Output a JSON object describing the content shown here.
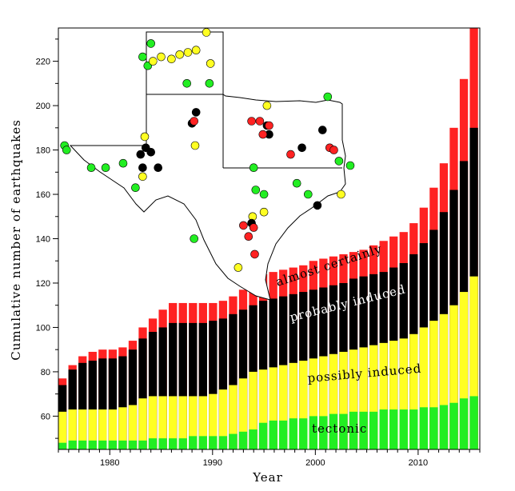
{
  "chart_data": {
    "type": "area",
    "stacked": true,
    "xlabel": "Year",
    "ylabel": "Cumulative number of earthquakes",
    "xlim": [
      1975,
      2016
    ],
    "ylim": [
      45,
      235
    ],
    "x_ticks": [
      1980,
      1990,
      2000,
      2010
    ],
    "y_ticks": [
      60,
      80,
      100,
      120,
      140,
      160,
      180,
      200,
      220
    ],
    "grid": false,
    "colors": {
      "tectonic": "#22ee22",
      "possibly_induced": "#ffff22",
      "probably_induced": "#000000",
      "almost_certainly": "#ff2222"
    },
    "x": [
      1975,
      1976,
      1977,
      1978,
      1979,
      1980,
      1981,
      1982,
      1983,
      1984,
      1985,
      1986,
      1987,
      1988,
      1989,
      1990,
      1991,
      1992,
      1993,
      1994,
      1995,
      1996,
      1997,
      1998,
      1999,
      2000,
      2001,
      2002,
      2003,
      2004,
      2005,
      2006,
      2007,
      2008,
      2009,
      2010,
      2011,
      2012,
      2013,
      2014,
      2015,
      2016
    ],
    "series": [
      {
        "name": "tectonic",
        "values": [
          48,
          49,
          49,
          49,
          49,
          49,
          49,
          49,
          49,
          50,
          50,
          50,
          50,
          51,
          51,
          51,
          51,
          52,
          53,
          54,
          57,
          58,
          58,
          59,
          59,
          60,
          60,
          61,
          61,
          62,
          62,
          62,
          63,
          63,
          63,
          63,
          64,
          64,
          65,
          66,
          68,
          69
        ]
      },
      {
        "name": "possibly induced",
        "values": [
          62,
          63,
          63,
          63,
          63,
          63,
          64,
          65,
          68,
          69,
          69,
          69,
          69,
          69,
          69,
          70,
          72,
          74,
          77,
          80,
          81,
          82,
          83,
          84,
          85,
          86,
          87,
          88,
          89,
          90,
          91,
          92,
          93,
          94,
          95,
          97,
          100,
          103,
          106,
          110,
          116,
          123
        ]
      },
      {
        "name": "probably induced",
        "values": [
          74,
          81,
          84,
          85,
          86,
          86,
          87,
          90,
          95,
          98,
          100,
          102,
          102,
          102,
          102,
          103,
          104,
          106,
          108,
          110,
          112,
          113,
          114,
          115,
          116,
          117,
          118,
          119,
          120,
          122,
          123,
          124,
          125,
          127,
          129,
          133,
          138,
          144,
          152,
          162,
          175,
          190
        ]
      },
      {
        "name": "almost certainly",
        "values": [
          77,
          83,
          87,
          89,
          90,
          90,
          91,
          94,
          100,
          104,
          108,
          111,
          111,
          111,
          111,
          111,
          112,
          114,
          117,
          120,
          124,
          125,
          126,
          127,
          128,
          130,
          131,
          132,
          133,
          134,
          135,
          137,
          139,
          141,
          143,
          147,
          154,
          163,
          174,
          190,
          212,
          235
        ]
      }
    ],
    "labels": {
      "tectonic": "tectonic",
      "possibly_induced": "possibly induced",
      "probably_induced": "probably induced",
      "almost_certainly": "almost certainly"
    },
    "map_inset": {
      "markers": [
        {
          "year_pos": 1975.6,
          "value": 182,
          "category": "tectonic"
        },
        {
          "year_pos": 1975.8,
          "value": 180,
          "category": "tectonic"
        },
        {
          "year_pos": 1978.2,
          "value": 172,
          "category": "tectonic"
        },
        {
          "year_pos": 1979.6,
          "value": 172,
          "category": "tectonic"
        },
        {
          "year_pos": 1981.3,
          "value": 174,
          "category": "tectonic"
        },
        {
          "year_pos": 1982.5,
          "value": 163,
          "category": "tectonic"
        },
        {
          "year_pos": 1983.2,
          "value": 222,
          "category": "tectonic"
        },
        {
          "year_pos": 1984.0,
          "value": 228,
          "category": "tectonic"
        },
        {
          "year_pos": 1983.7,
          "value": 218,
          "category": "tectonic"
        },
        {
          "year_pos": 1987.5,
          "value": 210,
          "category": "tectonic"
        },
        {
          "year_pos": 1989.7,
          "value": 210,
          "category": "tectonic"
        },
        {
          "year_pos": 1994.0,
          "value": 172,
          "category": "tectonic"
        },
        {
          "year_pos": 1994.2,
          "value": 162,
          "category": "tectonic"
        },
        {
          "year_pos": 1995.0,
          "value": 160,
          "category": "tectonic"
        },
        {
          "year_pos": 1998.2,
          "value": 165,
          "category": "tectonic"
        },
        {
          "year_pos": 1999.3,
          "value": 160,
          "category": "tectonic"
        },
        {
          "year_pos": 2001.2,
          "value": 204,
          "category": "tectonic"
        },
        {
          "year_pos": 2002.3,
          "value": 175,
          "category": "tectonic"
        },
        {
          "year_pos": 2003.4,
          "value": 173,
          "category": "tectonic"
        },
        {
          "year_pos": 1988.2,
          "value": 140,
          "category": "tectonic"
        },
        {
          "year_pos": 1984.2,
          "value": 220,
          "category": "possibly induced"
        },
        {
          "year_pos": 1985.0,
          "value": 222,
          "category": "possibly induced"
        },
        {
          "year_pos": 1986.0,
          "value": 221,
          "category": "possibly induced"
        },
        {
          "year_pos": 1986.8,
          "value": 223,
          "category": "possibly induced"
        },
        {
          "year_pos": 1987.6,
          "value": 224,
          "category": "possibly induced"
        },
        {
          "year_pos": 1988.4,
          "value": 225,
          "category": "possibly induced"
        },
        {
          "year_pos": 1989.4,
          "value": 233,
          "category": "possibly induced"
        },
        {
          "year_pos": 1989.8,
          "value": 219,
          "category": "possibly induced"
        },
        {
          "year_pos": 1983.4,
          "value": 186,
          "category": "possibly induced"
        },
        {
          "year_pos": 1983.2,
          "value": 168,
          "category": "possibly induced"
        },
        {
          "year_pos": 1988.3,
          "value": 182,
          "category": "possibly induced"
        },
        {
          "year_pos": 1995.3,
          "value": 200,
          "category": "possibly induced"
        },
        {
          "year_pos": 1993.9,
          "value": 150,
          "category": "possibly induced"
        },
        {
          "year_pos": 1995.0,
          "value": 152,
          "category": "possibly induced"
        },
        {
          "year_pos": 1992.5,
          "value": 127,
          "category": "possibly induced"
        },
        {
          "year_pos": 2002.5,
          "value": 160,
          "category": "possibly induced"
        },
        {
          "year_pos": 1983.5,
          "value": 181,
          "category": "probably induced"
        },
        {
          "year_pos": 1983.0,
          "value": 178,
          "category": "probably induced"
        },
        {
          "year_pos": 1983.2,
          "value": 172,
          "category": "probably induced"
        },
        {
          "year_pos": 1984.0,
          "value": 179,
          "category": "probably induced"
        },
        {
          "year_pos": 1984.7,
          "value": 172,
          "category": "probably induced"
        },
        {
          "year_pos": 1988.4,
          "value": 197,
          "category": "probably induced"
        },
        {
          "year_pos": 1988.0,
          "value": 192,
          "category": "probably induced"
        },
        {
          "year_pos": 1995.3,
          "value": 191,
          "category": "probably induced"
        },
        {
          "year_pos": 1995.5,
          "value": 187,
          "category": "probably induced"
        },
        {
          "year_pos": 1998.7,
          "value": 181,
          "category": "probably induced"
        },
        {
          "year_pos": 2000.7,
          "value": 189,
          "category": "probably induced"
        },
        {
          "year_pos": 2000.2,
          "value": 155,
          "category": "probably induced"
        },
        {
          "year_pos": 1993.8,
          "value": 147,
          "category": "probably induced"
        },
        {
          "year_pos": 1988.2,
          "value": 193,
          "category": "almost certainly"
        },
        {
          "year_pos": 1993.8,
          "value": 193,
          "category": "almost certainly"
        },
        {
          "year_pos": 1994.6,
          "value": 193,
          "category": "almost certainly"
        },
        {
          "year_pos": 1994.9,
          "value": 187,
          "category": "almost certainly"
        },
        {
          "year_pos": 1995.5,
          "value": 191,
          "category": "almost certainly"
        },
        {
          "year_pos": 1997.6,
          "value": 178,
          "category": "almost certainly"
        },
        {
          "year_pos": 2001.4,
          "value": 181,
          "category": "almost certainly"
        },
        {
          "year_pos": 2001.8,
          "value": 180,
          "category": "almost certainly"
        },
        {
          "year_pos": 1993.0,
          "value": 146,
          "category": "almost certainly"
        },
        {
          "year_pos": 1993.5,
          "value": 141,
          "category": "almost certainly"
        },
        {
          "year_pos": 1994.0,
          "value": 145,
          "category": "almost certainly"
        },
        {
          "year_pos": 1994.1,
          "value": 133,
          "category": "almost certainly"
        }
      ]
    }
  }
}
